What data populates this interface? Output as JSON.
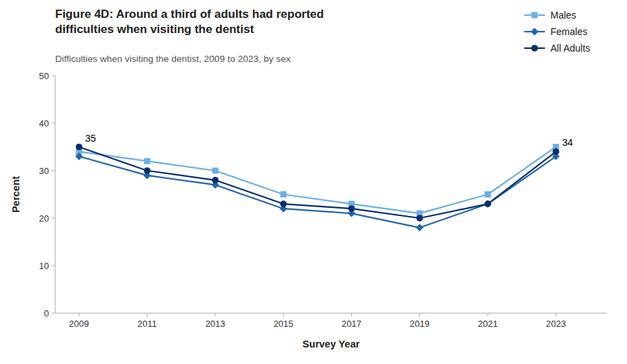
{
  "chart_data": {
    "type": "line",
    "title": "Figure 4D: Around a third of adults had reported\ndifficulties when visiting the dentist",
    "subtitle": "Difficulties when visiting the dentist, 2009 to 2023, by sex",
    "x_label": "Survey Year",
    "y_label": "Percent",
    "x": [
      2009,
      2011,
      2013,
      2015,
      2017,
      2019,
      2021,
      2023
    ],
    "series": [
      {
        "name": "Males",
        "color": "#6ab0e0",
        "marker": "square",
        "values": [
          34,
          32,
          30,
          25,
          23,
          21,
          25,
          35
        ]
      },
      {
        "name": "Females",
        "color": "#2166ac",
        "marker": "diamond",
        "values": [
          33,
          29,
          27,
          22,
          21,
          18,
          23,
          33
        ]
      },
      {
        "name": "All Adults",
        "color": "#0a2d6e",
        "marker": "circle",
        "values": [
          35,
          30,
          28,
          23,
          22,
          20,
          23,
          34
        ]
      }
    ],
    "xlim": [
      2008.3,
      2024.5
    ],
    "xticks": [
      2009,
      2011,
      2013,
      2015,
      2017,
      2019,
      2021,
      2023
    ],
    "ylim": [
      0,
      50
    ],
    "yticks": [
      0,
      10,
      20,
      30,
      40,
      50
    ],
    "annotations": [
      {
        "text": "35",
        "x": 2009,
        "y": 35
      },
      {
        "text": "34",
        "x": 2023,
        "y": 34
      }
    ],
    "grid": false,
    "legend": "upper right"
  }
}
